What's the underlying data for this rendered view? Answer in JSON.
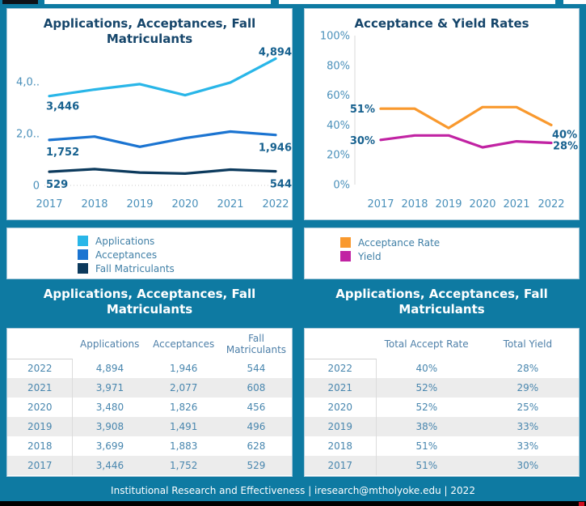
{
  "page": {
    "background_color": "#0e7aa2",
    "footer_text": "Institutional Research and Effectiveness | iresearch@mtholyoke.edu | 2022"
  },
  "chart_data": [
    {
      "type": "line",
      "title": "Applications, Acceptances, Fall Matriculants",
      "categories": [
        "2017",
        "2018",
        "2019",
        "2020",
        "2021",
        "2022"
      ],
      "series": [
        {
          "name": "Applications",
          "color": "#29b6e8",
          "values": [
            3446,
            3699,
            3908,
            3480,
            3971,
            4894
          ]
        },
        {
          "name": "Acceptances",
          "color": "#1b74d1",
          "values": [
            1752,
            1883,
            1491,
            1826,
            2077,
            1946
          ]
        },
        {
          "name": "Fall Matriculants",
          "color": "#0c3a5d",
          "values": [
            529,
            628,
            496,
            456,
            608,
            544
          ]
        }
      ],
      "ylim": [
        0,
        5200
      ],
      "yticks": [
        {
          "value": 4000,
          "label": "4,0.."
        },
        {
          "value": 2000,
          "label": "2,0.."
        },
        {
          "value": 0,
          "label": "0"
        }
      ],
      "grid": "dotted-zero-line",
      "legend_position": "separate-card-below",
      "point_labels": [
        {
          "series": 0,
          "index": 0,
          "text": "3,446"
        },
        {
          "series": 0,
          "index": 5,
          "text": "4,894"
        },
        {
          "series": 1,
          "index": 0,
          "text": "1,752"
        },
        {
          "series": 1,
          "index": 5,
          "text": "1,946"
        },
        {
          "series": 2,
          "index": 0,
          "text": "529"
        },
        {
          "series": 2,
          "index": 5,
          "text": "544"
        }
      ]
    },
    {
      "type": "line",
      "title": "Acceptance & Yield Rates",
      "categories": [
        "2017",
        "2018",
        "2019",
        "2020",
        "2021",
        "2022"
      ],
      "series": [
        {
          "name": "Acceptance Rate",
          "color": "#f9992e",
          "values": [
            51,
            51,
            38,
            52,
            52,
            40
          ]
        },
        {
          "name": "Yield",
          "color": "#c123a3",
          "values": [
            30,
            33,
            33,
            25,
            29,
            28
          ]
        }
      ],
      "ylim": [
        0,
        100
      ],
      "yticks": [
        {
          "value": 100,
          "label": "100%"
        },
        {
          "value": 80,
          "label": "80%"
        },
        {
          "value": 60,
          "label": "60%"
        },
        {
          "value": 40,
          "label": "40%"
        },
        {
          "value": 20,
          "label": "20%"
        },
        {
          "value": 0,
          "label": "0%"
        }
      ],
      "grid": "left-axis-line",
      "legend_position": "separate-card-below",
      "point_labels": [
        {
          "series": 0,
          "index": 0,
          "text": "51%"
        },
        {
          "series": 0,
          "index": 5,
          "text": "40%"
        },
        {
          "series": 1,
          "index": 0,
          "text": "30%"
        },
        {
          "series": 1,
          "index": 5,
          "text": "28%"
        }
      ]
    }
  ],
  "legends": {
    "left": [
      {
        "label": "Applications",
        "color": "#29b6e8"
      },
      {
        "label": "Acceptances",
        "color": "#1b74d1"
      },
      {
        "label": "Fall Matriculants",
        "color": "#0c3a5d"
      }
    ],
    "right": [
      {
        "label": "Acceptance Rate",
        "color": "#f9992e"
      },
      {
        "label": "Yield",
        "color": "#c123a3"
      }
    ]
  },
  "tables": {
    "left": {
      "title": "Applications, Acceptances, Fall Matriculants",
      "columns": [
        "",
        "Applications",
        "Acceptances",
        "Fall Matriculants"
      ],
      "rows": [
        [
          "2022",
          "4,894",
          "1,946",
          "544"
        ],
        [
          "2021",
          "3,971",
          "2,077",
          "608"
        ],
        [
          "2020",
          "3,480",
          "1,826",
          "456"
        ],
        [
          "2019",
          "3,908",
          "1,491",
          "496"
        ],
        [
          "2018",
          "3,699",
          "1,883",
          "628"
        ],
        [
          "2017",
          "3,446",
          "1,752",
          "529"
        ]
      ]
    },
    "right": {
      "title": "Applications, Acceptances, Fall Matriculants",
      "columns": [
        "",
        "Total Accept Rate",
        "Total Yield"
      ],
      "rows": [
        [
          "2022",
          "40%",
          "28%"
        ],
        [
          "2021",
          "52%",
          "29%"
        ],
        [
          "2020",
          "52%",
          "25%"
        ],
        [
          "2019",
          "38%",
          "33%"
        ],
        [
          "2018",
          "51%",
          "33%"
        ],
        [
          "2017",
          "51%",
          "30%"
        ]
      ]
    }
  }
}
